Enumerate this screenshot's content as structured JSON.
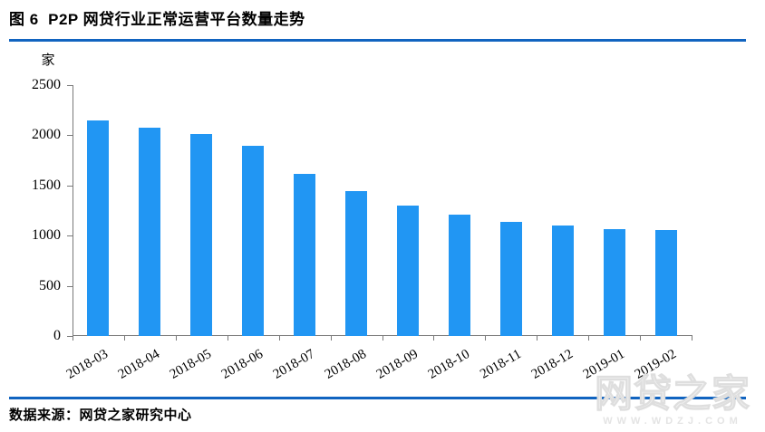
{
  "page": {
    "background": "#ffffff",
    "rule_color": "#1164c0"
  },
  "header": {
    "title": "图 6  P2P 网贷行业正常运营平台数量走势"
  },
  "footer": {
    "source": "数据来源：网贷之家研究中心"
  },
  "watermark": {
    "brand": "网贷之家",
    "url": "WWW.WDZJ.COM"
  },
  "chart_data": {
    "type": "bar",
    "title": "P2P网贷行业正常运营平台数量走势",
    "unit_label": "家",
    "categories": [
      "2018-03",
      "2018-04",
      "2018-05",
      "2018-06",
      "2018-07",
      "2018-08",
      "2018-09",
      "2018-10",
      "2018-11",
      "2018-12",
      "2019-01",
      "2019-02"
    ],
    "values": [
      2150,
      2075,
      2010,
      1895,
      1615,
      1445,
      1300,
      1210,
      1140,
      1100,
      1065,
      1055
    ],
    "xlabel": "",
    "ylabel": "家",
    "ylim": [
      0,
      2500
    ],
    "yticks": [
      0,
      500,
      1000,
      1500,
      2000,
      2500
    ],
    "bar_color": "#2196f3",
    "axis_color": "#7a7a7a",
    "grid": false,
    "legend_position": "none"
  }
}
